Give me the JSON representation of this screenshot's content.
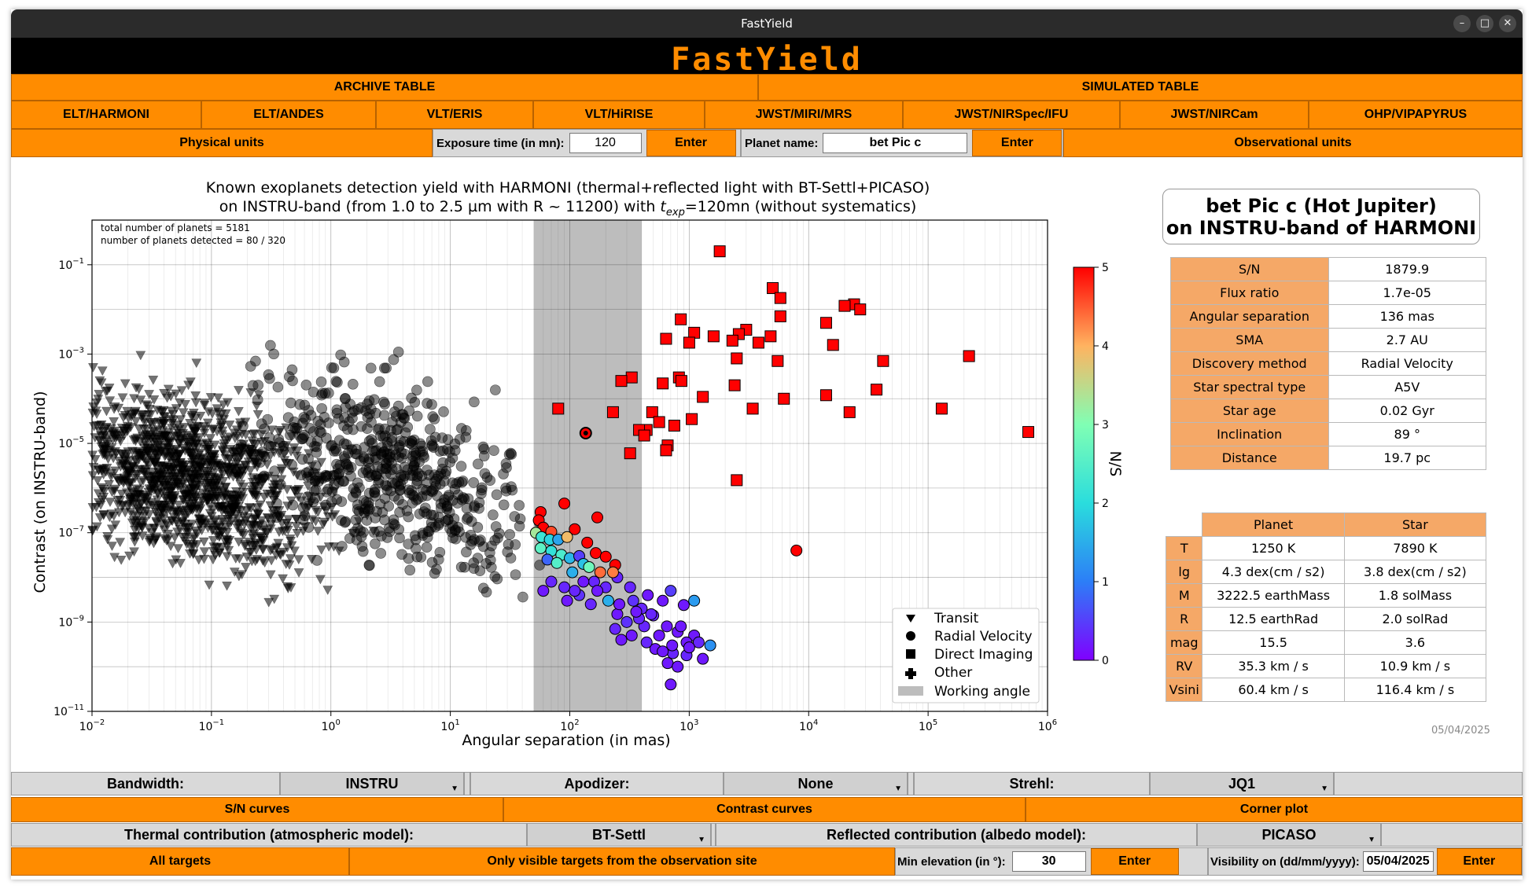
{
  "window": {
    "title": "FastYield"
  },
  "app_title": "FastYield",
  "nav": {
    "archive": "ARCHIVE TABLE",
    "simulated": "SIMULATED TABLE",
    "instruments": [
      "ELT/HARMONI",
      "ELT/ANDES",
      "VLT/ERIS",
      "VLT/HiRISE",
      "JWST/MIRI/MRS",
      "JWST/NIRSpec/IFU",
      "JWST/NIRCam",
      "OHP/VIPAPYRUS"
    ]
  },
  "controls": {
    "physical_units": "Physical units",
    "exposure_label": "Exposure time (in mn):",
    "exposure_value": "120",
    "enter": "Enter",
    "planet_label": "Planet name:",
    "planet_value": "bet Pic c",
    "observational_units": "Observational units"
  },
  "chart_data": {
    "type": "scatter",
    "title_line1": "Known exoplanets detection yield with HARMONI (thermal+reflected light with BT-Settl+PICASO)",
    "title_line2a": "on INSTRU-band (from 1.0 to 2.5 µm with R ~ 11200) with ",
    "title_line2t": "t",
    "title_line2s": "exp",
    "title_line2b": "=120mn (without systematics)",
    "xlabel": "Angular separation (in mas)",
    "ylabel": "Contrast (on INSTRU-band)",
    "xscale": "log",
    "yscale": "log",
    "xlim": [
      0.01,
      1000000
    ],
    "ylim": [
      1e-11,
      1
    ],
    "x_ticks": [
      {
        "b": "10",
        "e": "−2"
      },
      {
        "b": "10",
        "e": "−1"
      },
      {
        "b": "10",
        "e": "0"
      },
      {
        "b": "10",
        "e": "1"
      },
      {
        "b": "10",
        "e": "2"
      },
      {
        "b": "10",
        "e": "3"
      },
      {
        "b": "10",
        "e": "4"
      },
      {
        "b": "10",
        "e": "5"
      },
      {
        "b": "10",
        "e": "6"
      }
    ],
    "y_ticks": [
      {
        "b": "10",
        "e": "−11"
      },
      {
        "b": "10",
        "e": "−9"
      },
      {
        "b": "10",
        "e": "−7"
      },
      {
        "b": "10",
        "e": "−5"
      },
      {
        "b": "10",
        "e": "−3"
      },
      {
        "b": "10",
        "e": "−1"
      }
    ],
    "annotation1": "total number of planets = 5181",
    "annotation2": "number of planets detected = 80 / 320",
    "working_angle": [
      50,
      400
    ],
    "legend": [
      "Transit",
      "Radial Velocity",
      "Direct Imaging",
      "Other",
      "Working angle"
    ],
    "colorbar": {
      "label": "N/S",
      "ticks": [
        "0",
        "1",
        "2",
        "3",
        "4",
        "5"
      ],
      "range": [
        0,
        5
      ]
    },
    "highlight": {
      "name": "bet Pic c",
      "x": 136,
      "y": 1.7e-05
    },
    "direct_imaging_points": [
      [
        1800,
        0.2
      ],
      [
        5000,
        0.03
      ],
      [
        5800,
        0.018
      ],
      [
        24000,
        0.013
      ],
      [
        20000,
        0.012
      ],
      [
        27000,
        0.01
      ],
      [
        5800,
        0.007
      ],
      [
        850,
        0.006
      ],
      [
        14000,
        0.005
      ],
      [
        1100,
        0.003
      ],
      [
        3000,
        0.0035
      ],
      [
        2600,
        0.0028
      ],
      [
        1600,
        0.0025
      ],
      [
        4800,
        0.0025
      ],
      [
        640,
        0.0022
      ],
      [
        2300,
        0.002
      ],
      [
        16000,
        0.0016
      ],
      [
        1000,
        0.0018
      ],
      [
        3800,
        0.0018
      ],
      [
        220000,
        0.0009
      ],
      [
        2500,
        0.0008
      ],
      [
        42000,
        0.0007
      ],
      [
        5500,
        0.0007
      ],
      [
        330,
        0.0003
      ],
      [
        820,
        0.0003
      ],
      [
        270,
        0.00025
      ],
      [
        600,
        0.00022
      ],
      [
        860,
        0.00025
      ],
      [
        2400,
        0.0002
      ],
      [
        37000,
        0.00016
      ],
      [
        14000,
        0.00012
      ],
      [
        1300,
        0.00011
      ],
      [
        6200,
        0.0001
      ],
      [
        80,
        6e-05
      ],
      [
        230,
        5e-05
      ],
      [
        3400,
        6e-05
      ],
      [
        22000,
        5e-05
      ],
      [
        130000,
        6e-05
      ],
      [
        490,
        5e-05
      ],
      [
        1050,
        3.5e-05
      ],
      [
        560,
        3e-05
      ],
      [
        750,
        2.5e-05
      ],
      [
        440,
        2e-05
      ],
      [
        380,
        2e-05
      ],
      [
        420,
        1.5e-05
      ],
      [
        660,
        9e-06
      ],
      [
        640,
        7e-06
      ],
      [
        320,
        6e-06
      ],
      [
        690000,
        1.8e-05
      ],
      [
        2500,
        1.5e-06
      ]
    ],
    "rv_colored_points": [
      [
        90,
        4.5e-07,
        5
      ],
      [
        57,
        2.9e-07,
        5
      ],
      [
        170,
        2.2e-07,
        5
      ],
      [
        55,
        1.9e-07,
        5
      ],
      [
        60,
        1.3e-07,
        5
      ],
      [
        70,
        1.05e-07,
        4.6
      ],
      [
        110,
        1.2e-07,
        5
      ],
      [
        52,
        1e-07,
        3.3
      ],
      [
        58,
        8e-08,
        2.2
      ],
      [
        68,
        7e-08,
        1.9
      ],
      [
        80,
        7e-08,
        1.4
      ],
      [
        95,
        8e-08,
        3.9
      ],
      [
        140,
        6e-08,
        5
      ],
      [
        165,
        3.5e-08,
        5
      ],
      [
        200,
        2.9e-08,
        5
      ],
      [
        240,
        1.9e-08,
        5
      ],
      [
        7900,
        4e-08,
        5
      ],
      [
        57,
        4.5e-08,
        2.6
      ],
      [
        70,
        3.9e-08,
        2.1
      ],
      [
        85,
        3.2e-08,
        2.4
      ],
      [
        100,
        2.7e-08,
        1.6
      ],
      [
        120,
        3e-08,
        0.5
      ],
      [
        130,
        2e-08,
        1.7
      ],
      [
        145,
        1.7e-08,
        2.8
      ],
      [
        180,
        1.3e-08,
        4.4
      ],
      [
        65,
        2.5e-08,
        0.8
      ],
      [
        78,
        2.1e-08,
        2.5
      ],
      [
        105,
        1.3e-08,
        1.5
      ],
      [
        250,
        1e-08,
        0.3
      ],
      [
        230,
        1.3e-08,
        4.3
      ],
      [
        160,
        8e-09,
        0.3
      ],
      [
        320,
        6e-09,
        0.3
      ],
      [
        340,
        3e-09,
        0.4
      ],
      [
        450,
        4e-09,
        0.2
      ],
      [
        600,
        3e-09,
        0.2
      ],
      [
        900,
        2.4e-09,
        0.2
      ],
      [
        1100,
        3e-09,
        1.3
      ],
      [
        700,
        5e-09,
        0.5
      ],
      [
        210,
        3e-09,
        1.5
      ],
      [
        400,
        2e-09,
        0.3
      ],
      [
        500,
        1.4e-09,
        0.3
      ],
      [
        650,
        8e-10,
        0.2
      ],
      [
        800,
        6e-10,
        0.2
      ],
      [
        1100,
        5e-10,
        0.2
      ],
      [
        1500,
        3e-10,
        1.2
      ],
      [
        1200,
        3.5e-10,
        0.3
      ],
      [
        950,
        3.5e-10,
        0.2
      ],
      [
        420,
        8e-10,
        0.3
      ],
      [
        300,
        1e-09,
        0.4
      ],
      [
        250,
        1.5e-09,
        0.2
      ],
      [
        380,
        1.2e-09,
        0.3
      ],
      [
        560,
        5e-10,
        0.2
      ],
      [
        730,
        2e-10,
        0.3
      ],
      [
        520,
        2.5e-10,
        0.2
      ],
      [
        660,
        1.2e-10,
        0.2
      ],
      [
        700,
        4e-11,
        0.2
      ],
      [
        1300,
        1.5e-10,
        0.2
      ],
      [
        950,
        1.8e-10,
        0.3
      ],
      [
        480,
        1.5e-09,
        0.3
      ],
      [
        260,
        2.5e-09,
        0.2
      ],
      [
        200,
        6e-09,
        0.3
      ],
      [
        170,
        5e-09,
        0.2
      ],
      [
        120,
        4e-09,
        0.4
      ],
      [
        90,
        6e-09,
        0.3
      ],
      [
        70,
        8e-09,
        0.3
      ],
      [
        60,
        5e-09,
        0.2
      ],
      [
        150,
        2.5e-09,
        0.3
      ],
      [
        330,
        5e-10,
        0.2
      ],
      [
        850,
        8e-10,
        0.2
      ],
      [
        440,
        3.5e-10,
        0.3
      ],
      [
        600,
        2.2e-10,
        0.2
      ],
      [
        800,
        1e-10,
        0.2
      ],
      [
        720,
        3e-10,
        0.2
      ],
      [
        1000,
        2.7e-10,
        0.2
      ],
      [
        130,
        8e-09,
        0.2
      ],
      [
        110,
        5e-09,
        0.3
      ],
      [
        95,
        3e-09,
        0.2
      ],
      [
        240,
        7e-10,
        0.3
      ],
      [
        270,
        4e-10,
        0.2
      ],
      [
        360,
        1.7e-09,
        0.2
      ]
    ]
  },
  "planet_card": {
    "line1": "bet Pic c (Hot Jupiter)",
    "line2": "on INSTRU-band of HARMONI"
  },
  "planet_props": [
    {
      "k": "S/N",
      "v": "1879.9"
    },
    {
      "k": "Flux ratio",
      "v": "1.7e-05"
    },
    {
      "k": "Angular separation",
      "v": "136 mas"
    },
    {
      "k": "SMA",
      "v": "2.7 AU"
    },
    {
      "k": "Discovery method",
      "v": "Radial Velocity"
    },
    {
      "k": "Star spectral type",
      "v": "A5V"
    },
    {
      "k": "Star age",
      "v": "0.02 Gyr"
    },
    {
      "k": "Inclination",
      "v": "89 °"
    },
    {
      "k": "Distance",
      "v": "19.7 pc"
    }
  ],
  "compare": {
    "header_planet": "Planet",
    "header_star": "Star",
    "rows": [
      {
        "k": "T",
        "p": "1250 K",
        "s": "7890 K"
      },
      {
        "k": "lg",
        "p": "4.3 dex(cm / s2)",
        "s": "3.8 dex(cm / s2)"
      },
      {
        "k": "M",
        "p": "3222.5 earthMass",
        "s": "1.8 solMass"
      },
      {
        "k": "R",
        "p": "12.5 earthRad",
        "s": "2.0 solRad"
      },
      {
        "k": "mag",
        "p": "15.5",
        "s": "3.6"
      },
      {
        "k": "RV",
        "p": "35.3 km / s",
        "s": "10.9 km / s"
      },
      {
        "k": "Vsini",
        "p": "60.4 km / s",
        "s": "116.4 km / s"
      }
    ]
  },
  "date": "05/04/2025",
  "bottom": {
    "bandwidth_label": "Bandwidth:",
    "bandwidth_value": "INSTRU",
    "apodizer_label": "Apodizer:",
    "apodizer_value": "None",
    "strehl_label": "Strehl:",
    "strehl_value": "JQ1",
    "sn_curves": "S/N curves",
    "contrast_curves": "Contrast curves",
    "corner_plot": "Corner plot",
    "thermal_label": "Thermal contribution (atmospheric model):",
    "thermal_value": "BT-Settl",
    "reflected_label": "Reflected contribution (albedo model):",
    "reflected_value": "PICASO",
    "all_targets": "All targets",
    "visible_targets": "Only visible targets from the observation site",
    "min_elev_label": "Min elevation (in °):",
    "min_elev_value": "30",
    "visibility_label": "Visibility on (dd/mm/yyyy):",
    "visibility_value": "05/04/2025",
    "enter": "Enter"
  }
}
